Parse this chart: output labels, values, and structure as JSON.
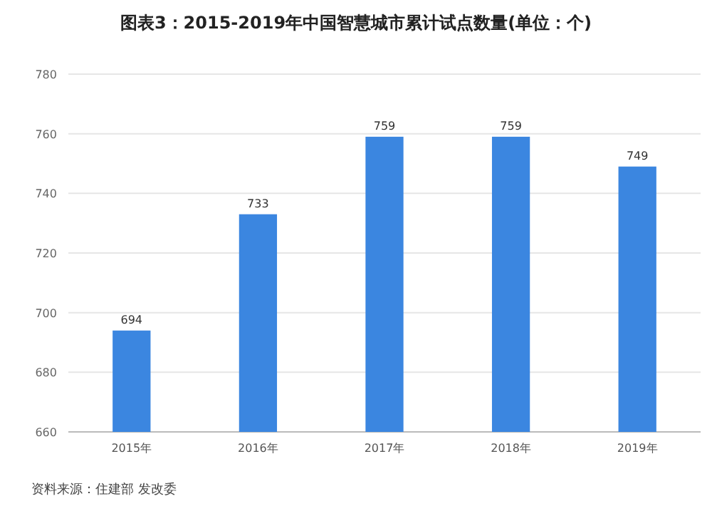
{
  "chart_data": {
    "type": "bar",
    "title": "图表3：2015-2019年中国智慧城市累计试点数量(单位：个)",
    "categories": [
      "2015年",
      "2016年",
      "2017年",
      "2018年",
      "2019年"
    ],
    "values": [
      694,
      733,
      759,
      759,
      749
    ],
    "color": "#3b86e0",
    "ylim": [
      660,
      780
    ],
    "yticks": [
      660,
      680,
      700,
      720,
      740,
      760,
      780
    ],
    "grid": "y",
    "data_labels": true,
    "annotations": [
      "资料来源：住建部 发改委"
    ]
  }
}
